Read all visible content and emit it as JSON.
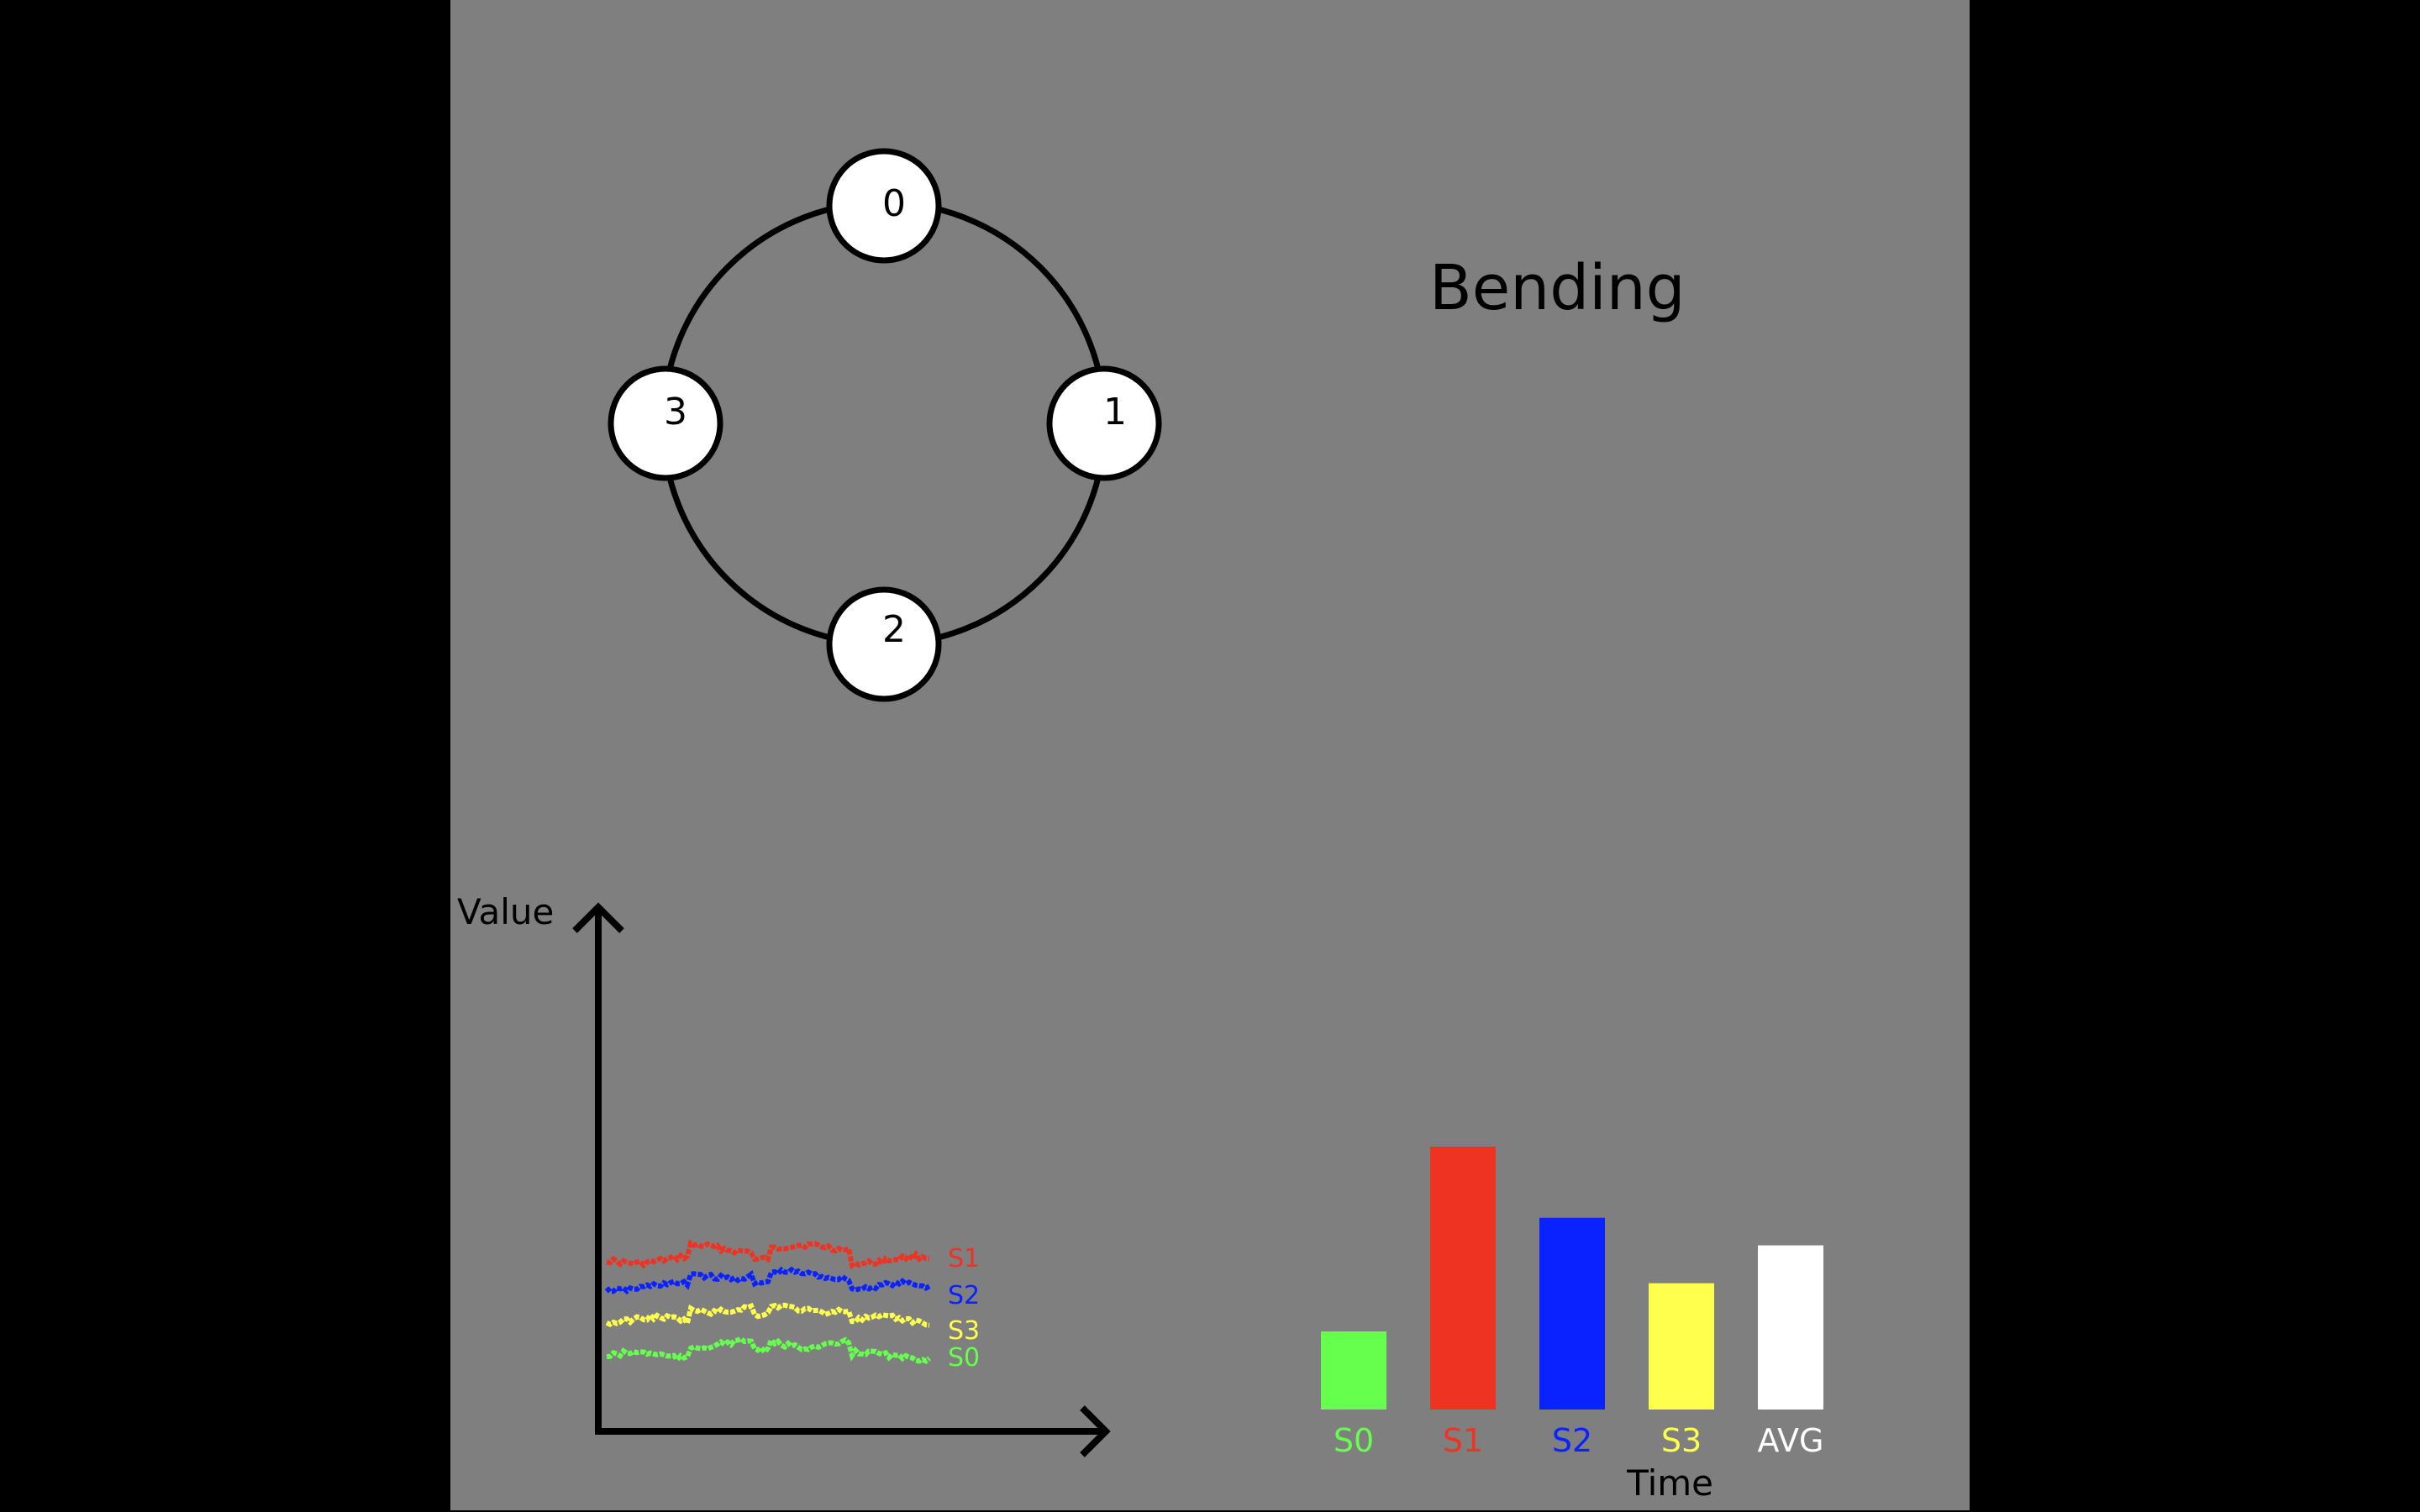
{
  "mode_label": "Bending",
  "sensor_ring": {
    "nodes": [
      "0",
      "1",
      "2",
      "3"
    ]
  },
  "colors": {
    "background": "#7f7f7f",
    "S0": "#66ff4d",
    "S1": "#ee3322",
    "S2": "#0a22ff",
    "S3": "#ffff4d",
    "AVG": "#ffffff"
  },
  "line_chart": {
    "ylabel": "Value",
    "xlabel": "Time",
    "series_labels": [
      "S1",
      "S2",
      "S3",
      "S0"
    ]
  },
  "chart_data": {
    "type": "bar",
    "categories": [
      "S0",
      "S1",
      "S2",
      "S3",
      "AVG"
    ],
    "values": [
      68,
      229,
      167,
      110,
      143
    ],
    "ylim": [
      0,
      300
    ]
  }
}
